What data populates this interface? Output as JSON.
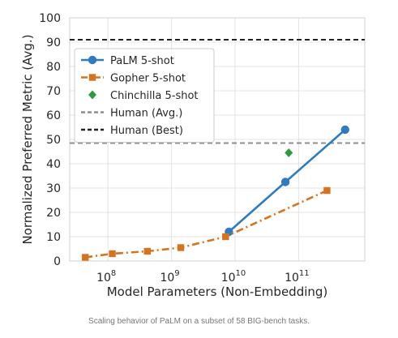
{
  "chart_data": {
    "type": "line",
    "title": "",
    "xlabel": "Model Parameters (Non-Embedding)",
    "ylabel": "Normalized Preferred Metric (Avg.)",
    "xscale": "log",
    "xlim": [
      25000000.0,
      1100000000000.0
    ],
    "ylim": [
      0,
      100
    ],
    "x_ticks": [
      {
        "value": 100000000.0,
        "base": "10",
        "exp": "8"
      },
      {
        "value": 1000000000.0,
        "base": "10",
        "exp": "9"
      },
      {
        "value": 10000000000.0,
        "base": "10",
        "exp": "10"
      },
      {
        "value": 100000000000.0,
        "base": "10",
        "exp": "11"
      }
    ],
    "y_ticks": [
      0,
      10,
      20,
      30,
      40,
      50,
      60,
      70,
      80,
      90,
      100
    ],
    "grid": true,
    "legend_position": "top-left",
    "series": [
      {
        "name": "PaLM 5-shot",
        "color": "#2e7bbf",
        "style": "solid",
        "marker": "circle",
        "points": [
          [
            8000000000.0,
            12
          ],
          [
            62000000000.0,
            32.5
          ],
          [
            540000000000.0,
            54
          ]
        ]
      },
      {
        "name": "Gopher 5-shot",
        "color": "#d6731f",
        "style": "dashdot",
        "marker": "square",
        "points": [
          [
            44000000.0,
            1.5
          ],
          [
            117000000.0,
            3
          ],
          [
            417000000.0,
            4
          ],
          [
            1400000000.0,
            5.5
          ],
          [
            7100000000.0,
            10
          ],
          [
            280000000000.0,
            29
          ]
        ]
      },
      {
        "name": "Chinchilla 5-shot",
        "color": "#2e9a40",
        "style": "none",
        "marker": "diamond",
        "points": [
          [
            70000000000.0,
            44.5
          ]
        ]
      }
    ],
    "reference_lines": [
      {
        "name": "Human (Avg.)",
        "y": 48.5,
        "color": "#8c8c8c",
        "style": "dashed"
      },
      {
        "name": "Human (Best)",
        "y": 91,
        "color": "#222222",
        "style": "dashed"
      }
    ]
  },
  "caption": "Scaling behavior of PaLM on a subset of 58 BIG-bench tasks."
}
